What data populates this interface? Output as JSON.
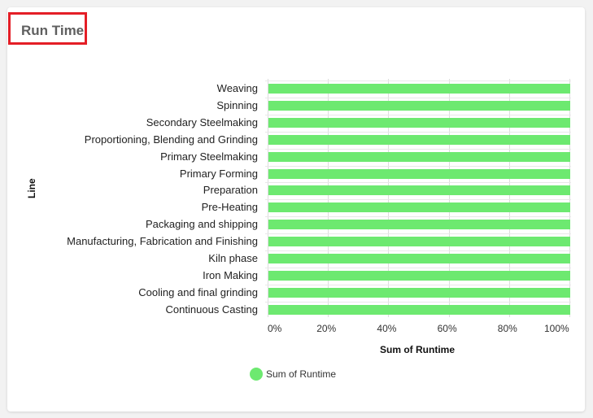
{
  "card": {
    "title": "Run Time"
  },
  "chart_data": {
    "type": "bar",
    "orientation": "horizontal",
    "title": "Run Time",
    "xlabel": "Sum of Runtime",
    "ylabel": "Line",
    "categories": [
      "Weaving",
      "Spinning",
      "Secondary Steelmaking",
      "Proportioning, Blending and Grinding",
      "Primary Steelmaking",
      "Primary Forming",
      "Preparation",
      "Pre-Heating",
      "Packaging and shipping",
      "Manufacturing, Fabrication and Finishing",
      "Kiln phase",
      "Iron Making",
      "Cooling and final grinding",
      "Continuous Casting"
    ],
    "series": [
      {
        "name": "Sum of Runtime",
        "color": "#6de970",
        "values": [
          100,
          100,
          100,
          100,
          100,
          100,
          100,
          100,
          100,
          100,
          100,
          100,
          100,
          100
        ]
      }
    ],
    "xticks": [
      "0%",
      "20%",
      "40%",
      "60%",
      "80%",
      "100%"
    ],
    "xlim": [
      0,
      100
    ],
    "grid": true,
    "legend_position": "bottom"
  },
  "legend": {
    "label": "Sum of Runtime"
  },
  "axes": {
    "xlabel": "Sum of Runtime",
    "ylabel": "Line"
  }
}
